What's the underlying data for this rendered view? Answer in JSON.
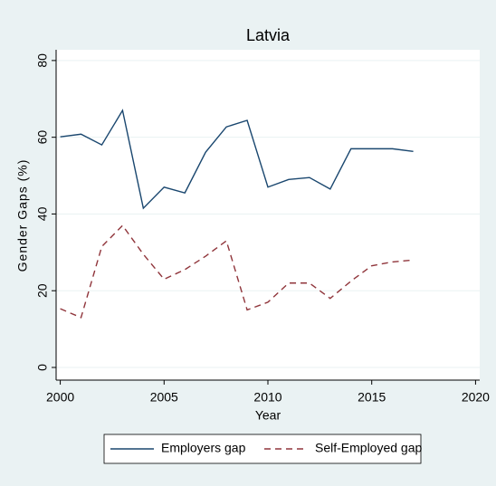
{
  "chart_data": {
    "type": "line",
    "title": "Latvia",
    "x_label": "Year",
    "y_label": "Gender Gaps (%)",
    "x": [
      2000,
      2001,
      2002,
      2003,
      2004,
      2005,
      2006,
      2007,
      2008,
      2009,
      2010,
      2011,
      2012,
      2013,
      2014,
      2015,
      2016,
      2017
    ],
    "series": [
      {
        "name": "Employers gap",
        "color": "#1a476f",
        "dash": "solid",
        "values": [
          60.1,
          60.8,
          58,
          67,
          41.5,
          47,
          45.5,
          56.1,
          62.7,
          64.4,
          47,
          49,
          49.5,
          46.5,
          57,
          57,
          57,
          56.3
        ]
      },
      {
        "name": "Self-Employed gap",
        "color": "#90353b",
        "dash": "dashed",
        "values": [
          15.3,
          13,
          31.5,
          37,
          29.5,
          23,
          25.5,
          29,
          33,
          15,
          17,
          22,
          22,
          18,
          22.5,
          26.5,
          27.5,
          28
        ]
      }
    ],
    "xlim": [
      1999.8,
      2020.2
    ],
    "xticks": [
      2000,
      2005,
      2010,
      2015,
      2020
    ],
    "ylim": [
      -3.3,
      82.8
    ],
    "yticks": [
      0,
      20,
      40,
      60,
      80
    ],
    "grid": true,
    "legend": "bottom"
  }
}
